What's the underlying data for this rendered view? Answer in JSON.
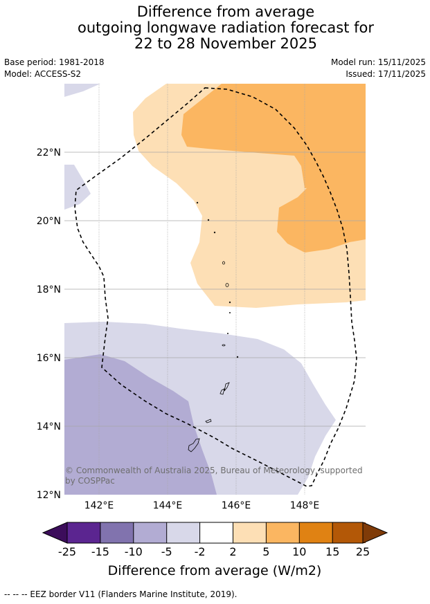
{
  "title": {
    "line1": "Difference from average",
    "line2": "outgoing longwave radiation forecast for",
    "line3": "22 to 28 November 2025"
  },
  "meta": {
    "base_period": "Base period: 1981-2018",
    "model": "Model: ACCESS-S2",
    "model_run": "Model run: 15/11/2025",
    "issued": "Issued: 17/11/2025"
  },
  "map": {
    "lat_labels": [
      "22°N",
      "20°N",
      "18°N",
      "16°N",
      "14°N",
      "12°N"
    ],
    "lon_labels": [
      "142°E",
      "144°E",
      "146°E",
      "148°E"
    ],
    "copyright_line1": "© Commonwealth of Australia 2025, Bureau of Meteorology, supported",
    "copyright_line2": "by COSPPac",
    "colors": {
      "neg_light": "#d8d8e9",
      "neg_mid": "#b2acd3",
      "pos_light": "#fddfb5",
      "pos_mid": "#fbb661",
      "eez": "#000000"
    }
  },
  "colorbar": {
    "ticks": [
      "-25",
      "-15",
      "-10",
      "-5",
      "-2",
      "2",
      "5",
      "10",
      "15",
      "25"
    ],
    "colors": [
      "#3c0d5b",
      "#5b2590",
      "#8173ae",
      "#b2acd3",
      "#d8d8e9",
      "#ffffff",
      "#fddfb5",
      "#fbb661",
      "#e08213",
      "#b35807",
      "#7f3b08"
    ],
    "label": "Difference from average (W/m2)"
  },
  "footer": {
    "text": "--  --  -- EEZ border V11 (Flanders Marine Institute, 2019)."
  }
}
